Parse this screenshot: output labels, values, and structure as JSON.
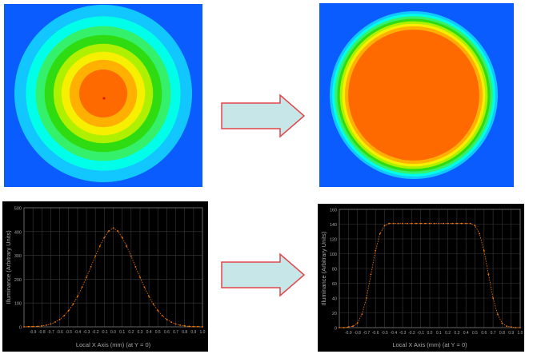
{
  "colors": {
    "background_blue": "#0a5cff",
    "map_levels": [
      "#12c6ff",
      "#00ffe8",
      "#35f06a",
      "#2fdc12",
      "#aef000",
      "#f6f000",
      "#ffb000",
      "#ff6a00"
    ],
    "center_dot": "#d81e00",
    "arrow_fill": "#c6e6e8",
    "arrow_stroke": "#e0464a",
    "plot_bg": "#000000",
    "plot_grid": "#3a3a3a",
    "plot_text": "#a8a8a8",
    "curve": "#ff7a00"
  },
  "maps": [
    {
      "name": "input-irradiance-map",
      "description_levels": 8,
      "bands_relative_radius": [
        1.0,
        0.87,
        0.76,
        0.66,
        0.56,
        0.47,
        0.38,
        0.27
      ]
    },
    {
      "name": "output-irradiance-map",
      "description_levels": 8,
      "bands_relative_radius": [
        1.0,
        0.97,
        0.94,
        0.91,
        0.88,
        0.85,
        0.82,
        0.78
      ]
    }
  ],
  "chart_data": [
    {
      "type": "line",
      "title": "",
      "xlabel": "Local X Axis (mm) (at Y = 0)",
      "ylabel": "Illuminance (Arbitrary Units)",
      "xlim": [
        -1.0,
        1.0
      ],
      "ylim": [
        0,
        500
      ],
      "yticks": [
        "0",
        "100",
        "200",
        "300",
        "400",
        "500"
      ],
      "xticks": [
        "-0.9",
        "-0.8",
        "-0.7",
        "-0.6",
        "-0.5",
        "-0.4",
        "-0.3",
        "-0.2",
        "-0.1",
        "0.0",
        "0.1",
        "0.2",
        "0.3",
        "0.4",
        "0.5",
        "0.6",
        "0.7",
        "0.8",
        "0.9",
        "1.0"
      ],
      "grid": true,
      "series": [
        {
          "x": [
            -1.0,
            -0.95,
            -0.9,
            -0.85,
            -0.8,
            -0.75,
            -0.7,
            -0.65,
            -0.6,
            -0.55,
            -0.5,
            -0.45,
            -0.4,
            -0.35,
            -0.3,
            -0.25,
            -0.2,
            -0.15,
            -0.1,
            -0.05,
            0.0,
            0.05,
            0.1,
            0.15,
            0.2,
            0.25,
            0.3,
            0.35,
            0.4,
            0.45,
            0.5,
            0.55,
            0.6,
            0.65,
            0.7,
            0.75,
            0.8,
            0.85,
            0.9,
            0.95,
            1.0
          ],
          "values": [
            0,
            1,
            1,
            2,
            4,
            7,
            12,
            20,
            31,
            47,
            68,
            95,
            128,
            166,
            208,
            252,
            297,
            339,
            375,
            402,
            415,
            402,
            375,
            339,
            297,
            252,
            208,
            166,
            128,
            95,
            68,
            47,
            31,
            20,
            12,
            7,
            4,
            2,
            1,
            1,
            0
          ]
        }
      ]
    },
    {
      "type": "line",
      "title": "",
      "xlabel": "Local X Axis (mm) (at Y = 0)",
      "ylabel": "Illuminance (Arbitrary Units)",
      "xlim": [
        -1.0,
        1.0
      ],
      "ylim": [
        0,
        160
      ],
      "yticks": [
        "0",
        "20",
        "40",
        "60",
        "80",
        "100",
        "120",
        "140",
        "160"
      ],
      "xticks": [
        "-0.9",
        "-0.8",
        "-0.7",
        "-0.6",
        "-0.5",
        "-0.4",
        "-0.3",
        "-0.2",
        "-0.1",
        "0.0",
        "0.1",
        "0.2",
        "0.3",
        "0.4",
        "0.5",
        "0.6",
        "0.7",
        "0.8",
        "0.9",
        "1.0"
      ],
      "grid": true,
      "series": [
        {
          "x": [
            -1.0,
            -0.95,
            -0.9,
            -0.85,
            -0.8,
            -0.75,
            -0.7,
            -0.65,
            -0.6,
            -0.55,
            -0.5,
            -0.45,
            -0.4,
            -0.35,
            -0.3,
            -0.25,
            -0.2,
            -0.15,
            -0.1,
            -0.05,
            0.0,
            0.05,
            0.1,
            0.15,
            0.2,
            0.25,
            0.3,
            0.35,
            0.4,
            0.45,
            0.5,
            0.55,
            0.6,
            0.65,
            0.7,
            0.75,
            0.8,
            0.85,
            0.9,
            0.95,
            1.0
          ],
          "values": [
            0,
            0,
            1,
            2,
            6,
            18,
            40,
            72,
            104,
            127,
            138,
            141,
            141,
            141,
            141,
            141,
            141,
            141,
            141,
            141,
            141,
            141,
            141,
            141,
            141,
            141,
            141,
            141,
            141,
            141,
            138,
            127,
            104,
            72,
            40,
            18,
            6,
            2,
            1,
            0,
            0
          ]
        }
      ]
    }
  ]
}
